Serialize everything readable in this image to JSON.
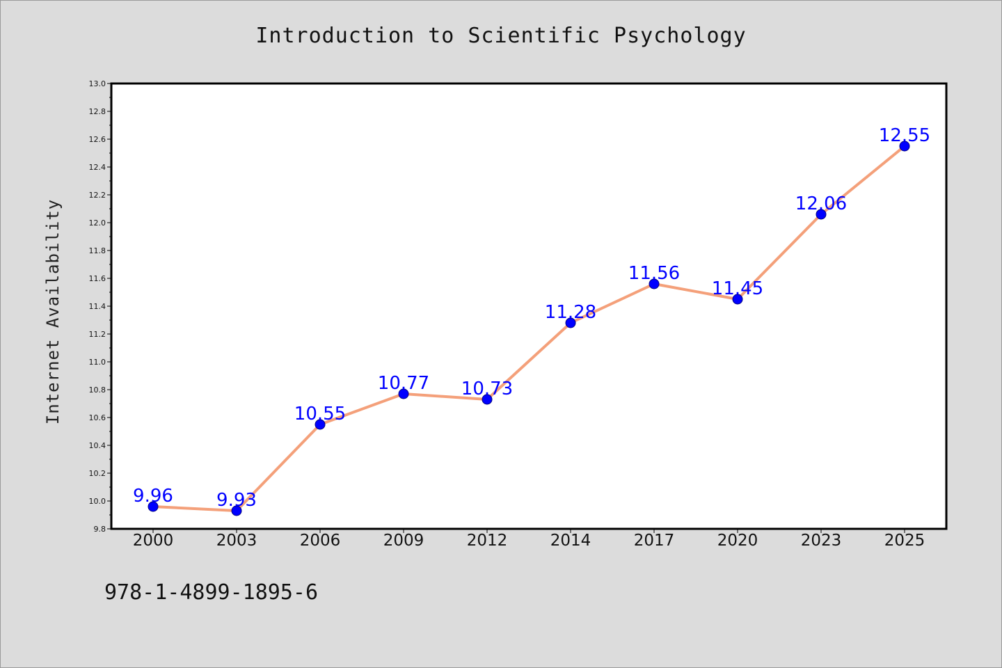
{
  "chart_data": {
    "type": "line",
    "title": "Introduction to Scientific Psychology",
    "ylabel": "Internet Availability",
    "xlabel": "",
    "categories": [
      "2000",
      "2003",
      "2006",
      "2009",
      "2012",
      "2014",
      "2017",
      "2020",
      "2023",
      "2025"
    ],
    "series": [
      {
        "values": [
          9.96,
          9.93,
          10.55,
          10.77,
          10.73,
          11.28,
          11.56,
          11.45,
          12.06,
          12.55
        ],
        "data_labels": [
          "9.96",
          "9.93",
          "10.55",
          "10.77",
          "10.73",
          "11.28",
          "11.56",
          "11.45",
          "12.06",
          "12.55"
        ],
        "line_color": "#f4a07a",
        "marker_color": "#0000ff",
        "label_color": "#0000ff"
      }
    ],
    "ylim": [
      9.8,
      13.0
    ],
    "yticks": [
      "9.8",
      "10.0",
      "10.2",
      "10.4",
      "10.6",
      "10.8",
      "11.0",
      "11.2",
      "11.4",
      "11.6",
      "11.8",
      "12.0",
      "12.2",
      "12.4",
      "12.6",
      "12.8",
      "13.0"
    ],
    "grid": false,
    "legend": "none"
  },
  "footer": {
    "isbn": "978-1-4899-1895-6"
  },
  "colors": {
    "background": "#dcdcdc",
    "plot_background": "#ffffff",
    "axes": "#000000"
  }
}
